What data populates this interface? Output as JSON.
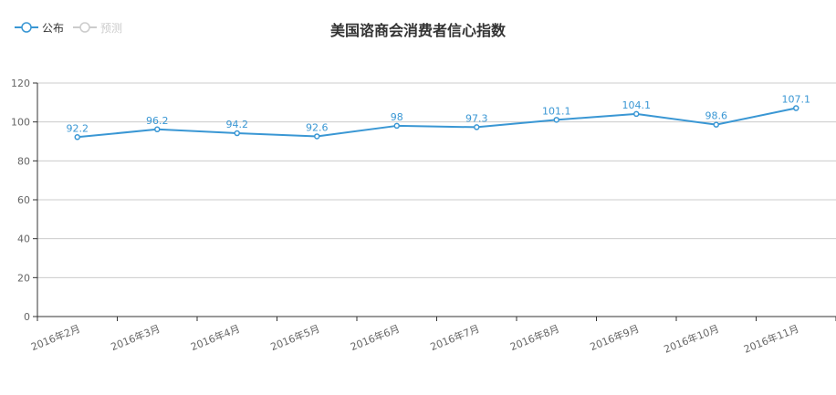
{
  "legend": {
    "items": [
      {
        "label": "公布",
        "active": true
      },
      {
        "label": "预测",
        "active": false
      }
    ]
  },
  "chart_data": {
    "type": "line",
    "title": "美国谘商会消费者信心指数",
    "xlabel": "",
    "ylabel": "",
    "categories": [
      "2016年2月",
      "2016年3月",
      "2016年4月",
      "2016年5月",
      "2016年6月",
      "2016年7月",
      "2016年8月",
      "2016年9月",
      "2016年10月",
      "2016年11月"
    ],
    "series": [
      {
        "name": "公布",
        "values": [
          92.2,
          96.2,
          94.2,
          92.6,
          98,
          97.3,
          101.1,
          104.1,
          98.6,
          107.1
        ]
      }
    ],
    "ylim": [
      0,
      120
    ],
    "yticks": [
      0,
      20,
      40,
      60,
      80,
      100,
      120
    ],
    "grid": true,
    "legend_position": "top-left",
    "colors": {
      "line": "#3a97d4",
      "legend_inactive": "#cccccc",
      "grid": "#cccccc",
      "axis": "#333333"
    }
  }
}
